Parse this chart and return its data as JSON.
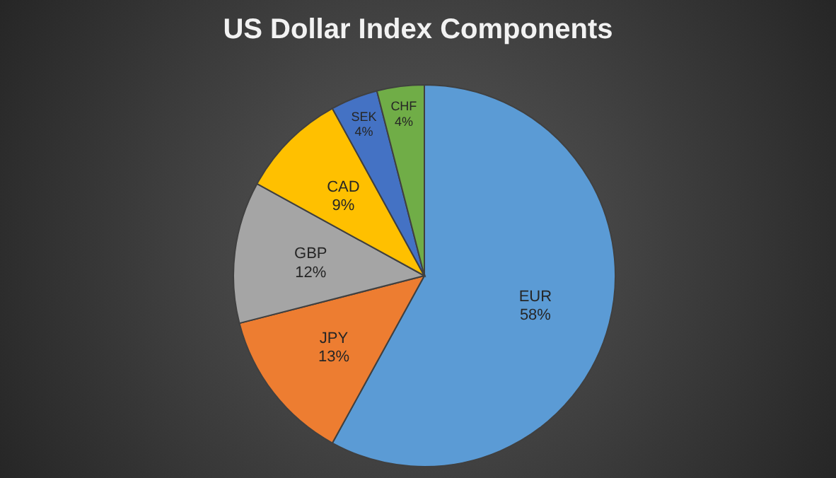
{
  "chart_data": {
    "type": "pie",
    "title": "US Dollar Index Components",
    "categories": [
      "EUR",
      "JPY",
      "GBP",
      "CAD",
      "SEK",
      "CHF"
    ],
    "values": [
      58,
      13,
      12,
      9,
      4,
      4
    ],
    "value_labels": [
      "58%",
      "13%",
      "12%",
      "9%",
      "4%",
      "4%"
    ],
    "colors": [
      "#5b9bd5",
      "#ed7d31",
      "#a5a5a5",
      "#ffc000",
      "#4472c4",
      "#70ad47"
    ],
    "legend": false
  }
}
